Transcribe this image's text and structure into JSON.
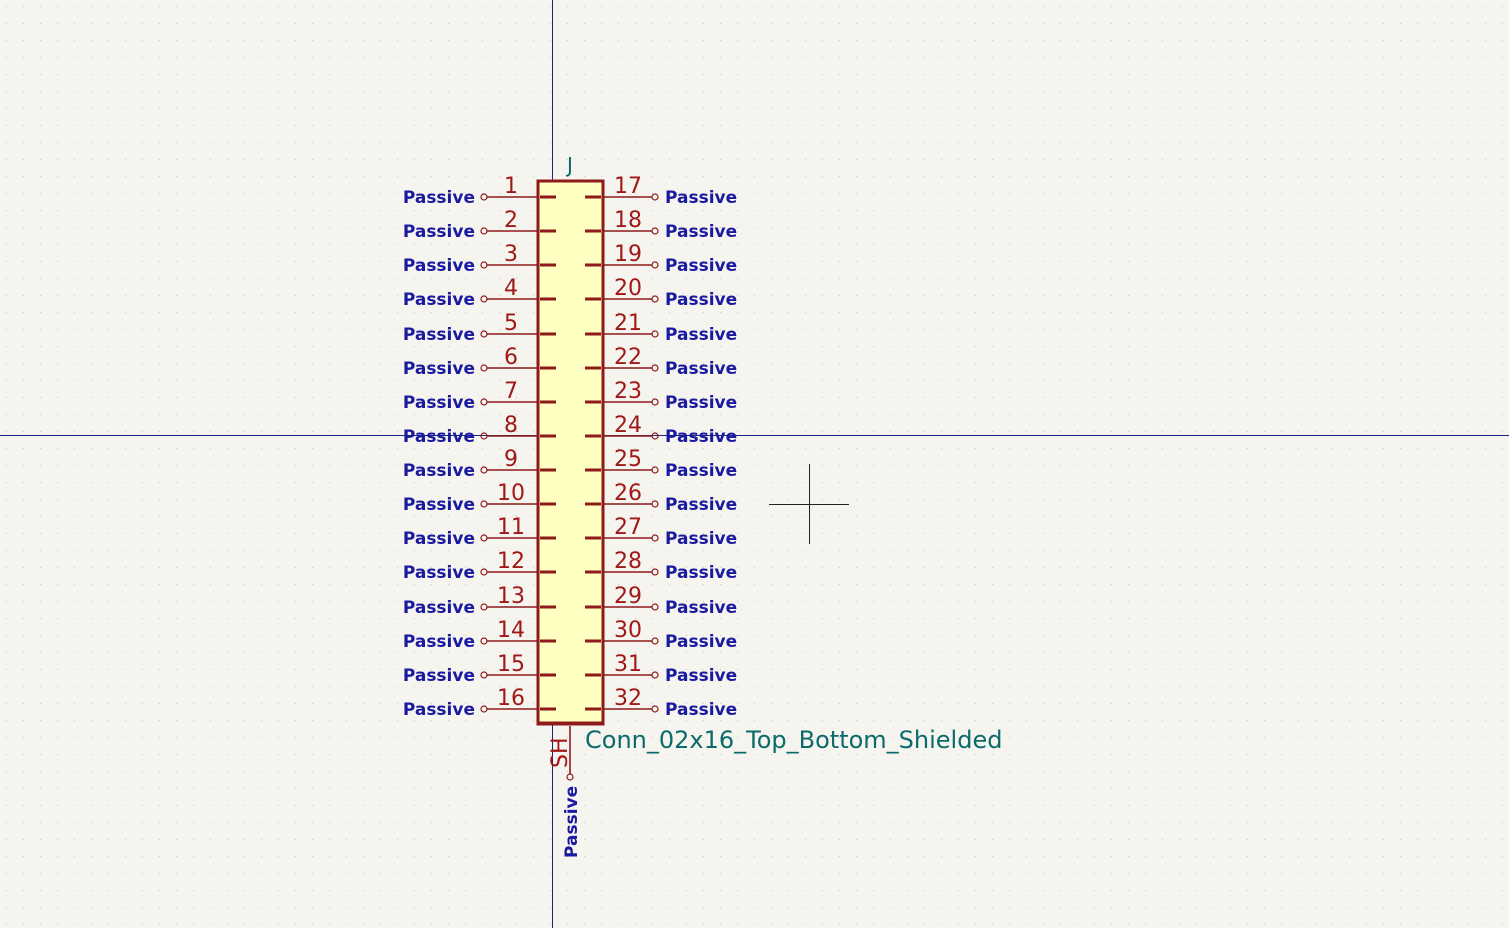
{
  "colors": {
    "background": "#f5f4ef",
    "grid_dot": "#c9c8c2",
    "axis": "#1a237e",
    "body_outline": "#8e1a1a",
    "body_fill": "#ffffc2",
    "pin": "#8e1a1a",
    "pin_number": "#a01818",
    "electrical_type": "#1a1aa0",
    "reference": "#0b6b6b",
    "value": "#0b6b6b",
    "cursor": "#222222"
  },
  "symbol": {
    "reference": "J",
    "value": "Conn_02x16_Top_Bottom_Shielded",
    "left_pins": [
      {
        "number": "1",
        "type": "Passive"
      },
      {
        "number": "2",
        "type": "Passive"
      },
      {
        "number": "3",
        "type": "Passive"
      },
      {
        "number": "4",
        "type": "Passive"
      },
      {
        "number": "5",
        "type": "Passive"
      },
      {
        "number": "6",
        "type": "Passive"
      },
      {
        "number": "7",
        "type": "Passive"
      },
      {
        "number": "8",
        "type": "Passive"
      },
      {
        "number": "9",
        "type": "Passive"
      },
      {
        "number": "10",
        "type": "Passive"
      },
      {
        "number": "11",
        "type": "Passive"
      },
      {
        "number": "12",
        "type": "Passive"
      },
      {
        "number": "13",
        "type": "Passive"
      },
      {
        "number": "14",
        "type": "Passive"
      },
      {
        "number": "15",
        "type": "Passive"
      },
      {
        "number": "16",
        "type": "Passive"
      }
    ],
    "right_pins": [
      {
        "number": "17",
        "type": "Passive"
      },
      {
        "number": "18",
        "type": "Passive"
      },
      {
        "number": "19",
        "type": "Passive"
      },
      {
        "number": "20",
        "type": "Passive"
      },
      {
        "number": "21",
        "type": "Passive"
      },
      {
        "number": "22",
        "type": "Passive"
      },
      {
        "number": "23",
        "type": "Passive"
      },
      {
        "number": "24",
        "type": "Passive"
      },
      {
        "number": "25",
        "type": "Passive"
      },
      {
        "number": "26",
        "type": "Passive"
      },
      {
        "number": "27",
        "type": "Passive"
      },
      {
        "number": "28",
        "type": "Passive"
      },
      {
        "number": "29",
        "type": "Passive"
      },
      {
        "number": "30",
        "type": "Passive"
      },
      {
        "number": "31",
        "type": "Passive"
      },
      {
        "number": "32",
        "type": "Passive"
      }
    ],
    "shield_pin": {
      "number": "SH",
      "type": "Passive"
    }
  }
}
